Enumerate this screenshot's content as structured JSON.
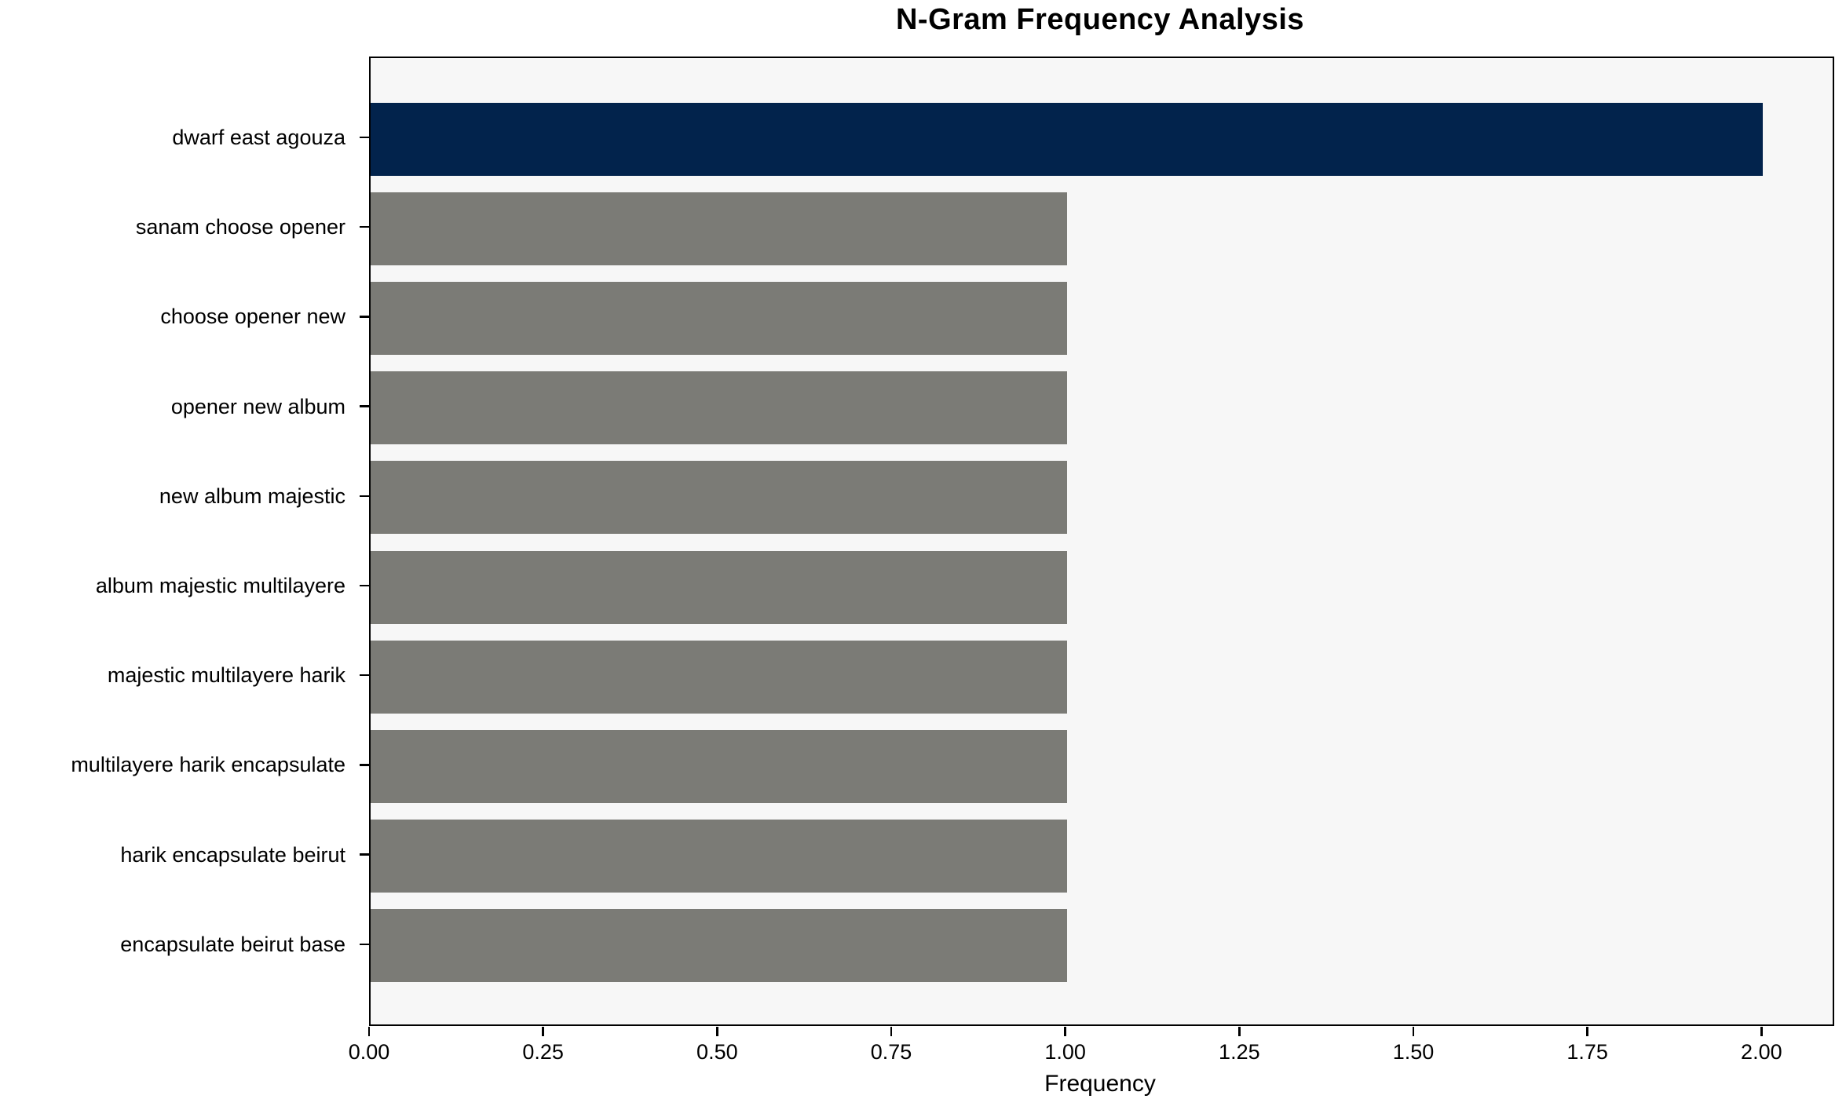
{
  "chart_data": {
    "type": "bar",
    "orientation": "horizontal",
    "title": "N-Gram Frequency Analysis",
    "xlabel": "Frequency",
    "ylabel": "",
    "categories": [
      "dwarf east agouza",
      "sanam choose opener",
      "choose opener new",
      "opener new album",
      "new album majestic",
      "album majestic multilayere",
      "majestic multilayere harik",
      "multilayere harik encapsulate",
      "harik encapsulate beirut",
      "encapsulate beirut base"
    ],
    "values": [
      2,
      1,
      1,
      1,
      1,
      1,
      1,
      1,
      1,
      1
    ],
    "colors": [
      "#02234c",
      "#7b7b76",
      "#7b7b76",
      "#7b7b76",
      "#7b7b76",
      "#7b7b76",
      "#7b7b76",
      "#7b7b76",
      "#7b7b76",
      "#7b7b76"
    ],
    "highlight_color": "#02234c",
    "default_bar_color": "#7b7b76",
    "plot_background": "#f7f7f7",
    "xlim": [
      0,
      2.1
    ],
    "xticks": [
      "0.00",
      "0.25",
      "0.50",
      "0.75",
      "1.00",
      "1.25",
      "1.50",
      "1.75",
      "2.00"
    ],
    "grid": false,
    "legend": null
  }
}
